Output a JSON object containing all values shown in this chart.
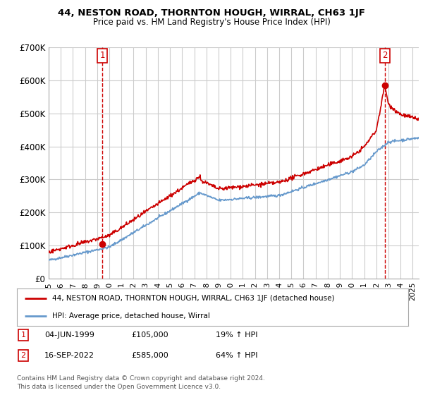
{
  "title": "44, NESTON ROAD, THORNTON HOUGH, WIRRAL, CH63 1JF",
  "subtitle": "Price paid vs. HM Land Registry's House Price Index (HPI)",
  "ylabel_ticks": [
    "£0",
    "£100K",
    "£200K",
    "£300K",
    "£400K",
    "£500K",
    "£600K",
    "£700K"
  ],
  "ylim": [
    0,
    700000
  ],
  "xlim_start": 1995.0,
  "xlim_end": 2025.5,
  "sale1_x": 1999.42,
  "sale1_y": 105000,
  "sale2_x": 2022.71,
  "sale2_y": 585000,
  "legend_label_red": "44, NESTON ROAD, THORNTON HOUGH, WIRRAL, CH63 1JF (detached house)",
  "legend_label_blue": "HPI: Average price, detached house, Wirral",
  "annotation1_label": "1",
  "annotation2_label": "2",
  "footer": "Contains HM Land Registry data © Crown copyright and database right 2024.\nThis data is licensed under the Open Government Licence v3.0.",
  "red_color": "#cc0000",
  "blue_color": "#6699cc",
  "grid_color": "#cccccc",
  "background_color": "#ffffff"
}
